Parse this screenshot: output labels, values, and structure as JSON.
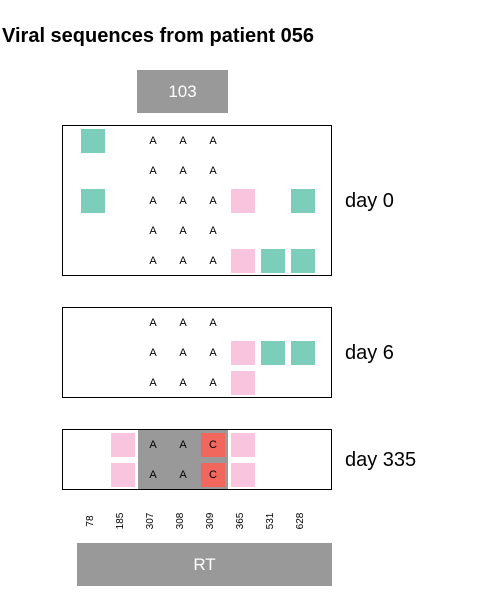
{
  "title": "Viral sequences from patient 056",
  "regions": {
    "top": "103",
    "bottom": "RT"
  },
  "positions": [
    "78",
    "185",
    "307",
    "308",
    "309",
    "365",
    "531",
    "628"
  ],
  "colors": {
    "green": "#7dcdbb",
    "pink": "#f8c4de",
    "red": "#f1675d",
    "gray": "#999999"
  },
  "panels": [
    {
      "label": "day 0",
      "rows": [
        [
          "green",
          "",
          "A",
          "A",
          "A",
          "",
          "",
          ""
        ],
        [
          "",
          "",
          "A",
          "A",
          "A",
          "",
          "",
          ""
        ],
        [
          "green",
          "",
          "A",
          "A",
          "A",
          "pink",
          "",
          "green"
        ],
        [
          "",
          "",
          "A",
          "A",
          "A",
          "",
          "",
          ""
        ],
        [
          "",
          "",
          "A",
          "A",
          "A",
          "pink",
          "green",
          "green"
        ]
      ]
    },
    {
      "label": "day 6",
      "rows": [
        [
          "",
          "",
          "A",
          "A",
          "A",
          "",
          "",
          ""
        ],
        [
          "",
          "",
          "A",
          "A",
          "A",
          "pink",
          "green",
          "green"
        ],
        [
          "",
          "",
          "A",
          "A",
          "A",
          "pink",
          "",
          ""
        ]
      ]
    },
    {
      "label": "day 335",
      "rows": [
        [
          "",
          "pink",
          "A",
          "A",
          "red:C",
          "pink",
          "",
          ""
        ],
        [
          "",
          "pink",
          "A",
          "A",
          "red:C",
          "pink",
          "",
          ""
        ]
      ]
    }
  ]
}
